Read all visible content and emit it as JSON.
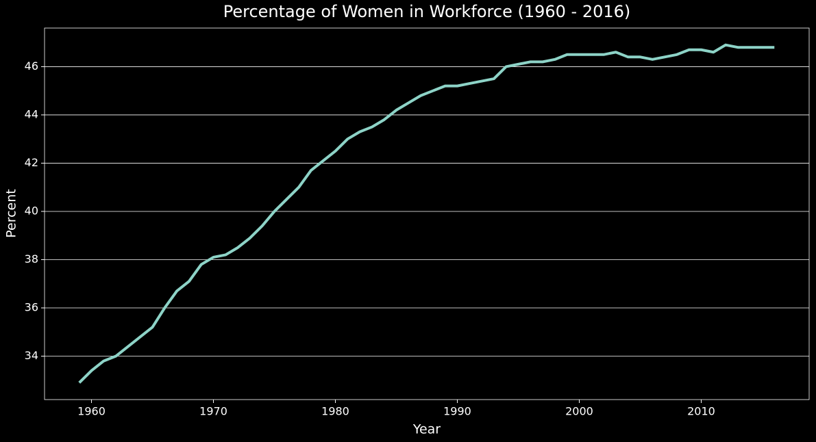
{
  "chart_data": {
    "type": "line",
    "title": "Percentage of Women in Workforce (1960 - 2016)",
    "x_label": "Year",
    "y_label": "Percent",
    "x": [
      1959,
      1960,
      1961,
      1962,
      1963,
      1964,
      1965,
      1966,
      1967,
      1968,
      1969,
      1970,
      1971,
      1972,
      1973,
      1974,
      1975,
      1976,
      1977,
      1978,
      1979,
      1980,
      1981,
      1982,
      1983,
      1984,
      1985,
      1986,
      1987,
      1988,
      1989,
      1990,
      1991,
      1992,
      1993,
      1994,
      1995,
      1996,
      1997,
      1998,
      1999,
      2000,
      2001,
      2002,
      2003,
      2004,
      2005,
      2006,
      2007,
      2008,
      2009,
      2010,
      2011,
      2012,
      2013,
      2014,
      2015,
      2016
    ],
    "series": [
      {
        "color": "#8dd3c7",
        "values": [
          32.9,
          33.4,
          33.8,
          34.0,
          34.4,
          34.8,
          35.2,
          36.0,
          36.7,
          37.1,
          37.8,
          38.1,
          38.2,
          38.5,
          38.9,
          39.4,
          40.0,
          40.5,
          41.0,
          41.7,
          42.1,
          42.5,
          43.0,
          43.3,
          43.5,
          43.8,
          44.2,
          44.5,
          44.8,
          45.0,
          45.2,
          45.2,
          45.3,
          45.4,
          45.5,
          46.0,
          46.1,
          46.2,
          46.2,
          46.3,
          46.5,
          46.5,
          46.5,
          46.5,
          46.6,
          46.4,
          46.4,
          46.3,
          46.4,
          46.5,
          46.7,
          46.7,
          46.6,
          46.9,
          46.8,
          46.8,
          46.8,
          46.8
        ]
      }
    ],
    "xlim": [
      1956.15,
      2018.85
    ],
    "xticks": [
      1960,
      1970,
      1980,
      1990,
      2000,
      2010
    ],
    "ylim": [
      32.2,
      47.6
    ],
    "yticks": [
      34,
      36,
      38,
      40,
      42,
      44,
      46
    ],
    "grid": "y"
  }
}
